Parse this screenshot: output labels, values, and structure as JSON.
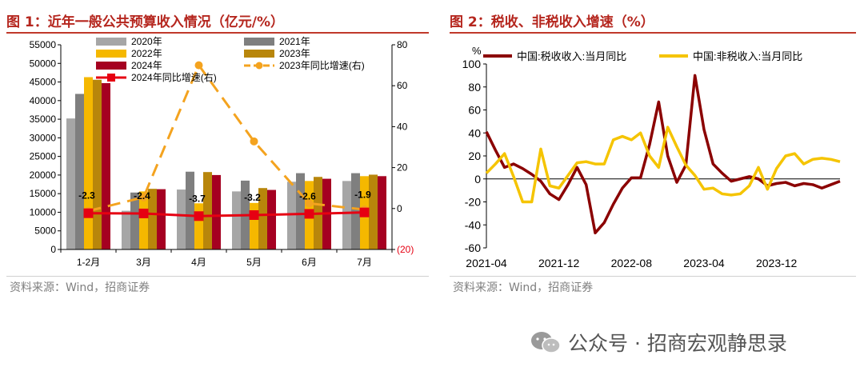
{
  "left": {
    "title": "图 1：近年一般公共预算收入情况（亿元/%）",
    "source": "资料来源：Wind，招商证券"
  },
  "right": {
    "title": "图 2：税收、非税收入增速（%）",
    "source": "资料来源：Wind，招商证券"
  },
  "watermark": "公众号 · 招商宏观静思录",
  "colors": {
    "title_red": "#b5261e",
    "c2020": "#a6a6a6",
    "c2021": "#7f7f7f",
    "c2022": "#f5b800",
    "c2023": "#b8860b",
    "c2024": "#a50021",
    "line2024": "#e60012",
    "line2023": "#f4a31f",
    "tax": "#8b0000",
    "nontax": "#f5c400"
  },
  "chart_data": [
    {
      "type": "bar",
      "categories": [
        "1-2月",
        "3月",
        "4月",
        "5月",
        "6月",
        "7月"
      ],
      "series": [
        {
          "name": "2020年",
          "values": [
            35200,
            10400,
            16100,
            15600,
            18200,
            18400
          ]
        },
        {
          "name": "2021年",
          "values": [
            41800,
            15300,
            20900,
            18500,
            20500,
            20500
          ]
        },
        {
          "name": "2022年",
          "values": [
            46300,
            15600,
            12400,
            12500,
            18400,
            19700
          ]
        },
        {
          "name": "2023年",
          "values": [
            45600,
            16300,
            20800,
            16500,
            19500,
            20100
          ]
        },
        {
          "name": "2024年",
          "values": [
            44700,
            16200,
            20000,
            16000,
            19000,
            19700
          ]
        }
      ],
      "line_series": [
        {
          "name": "2024年同比增速(右)",
          "axis": "right",
          "values": [
            -2.3,
            -2.4,
            -3.7,
            -3.2,
            -2.6,
            -1.9
          ]
        },
        {
          "name": "2023年同比增速(右)",
          "axis": "right",
          "values": [
            -1.2,
            5.5,
            70.0,
            32.8,
            2.5,
            -0.5
          ]
        }
      ],
      "data_labels": [
        "-2.3",
        "-2.4",
        "-3.7",
        "-3.2",
        "-2.6",
        "-1.9"
      ],
      "y_left_ticks": [
        "0",
        "5000",
        "10000",
        "15000",
        "20000",
        "25000",
        "30000",
        "35000",
        "40000",
        "45000",
        "50000",
        "55000"
      ],
      "y_right_ticks": [
        "(20)",
        "0",
        "20",
        "40",
        "60",
        "80"
      ],
      "ylim_left": [
        0,
        55000
      ],
      "ylim_right": [
        -20,
        80
      ],
      "legend_position": "top",
      "grid": false
    },
    {
      "type": "line",
      "ylabel": "%",
      "x_ticks": [
        "2021-04",
        "2021-12",
        "2022-08",
        "2023-04",
        "2023-12"
      ],
      "x": [
        "2021-04",
        "2021-05",
        "2021-06",
        "2021-07",
        "2021-08",
        "2021-09",
        "2021-10",
        "2021-11",
        "2021-12",
        "2022-01",
        "2022-02",
        "2022-03",
        "2022-04",
        "2022-05",
        "2022-06",
        "2022-07",
        "2022-08",
        "2022-09",
        "2022-10",
        "2022-11",
        "2022-12",
        "2023-01",
        "2023-02",
        "2023-03",
        "2023-04",
        "2023-05",
        "2023-06",
        "2023-07",
        "2023-08",
        "2023-09",
        "2023-10",
        "2023-11",
        "2023-12",
        "2024-01",
        "2024-02",
        "2024-03",
        "2024-04",
        "2024-05",
        "2024-06",
        "2024-07"
      ],
      "series": [
        {
          "name": "中国:税收收入:当月同比",
          "values": [
            41,
            25,
            10,
            13,
            9,
            4,
            -2,
            -13,
            -18,
            -5,
            10,
            -5,
            -47,
            -38,
            -22,
            -8,
            1,
            1,
            30,
            67,
            20,
            -3,
            12,
            90,
            43,
            13,
            5,
            -2,
            0,
            2,
            0,
            -6,
            -4,
            -3,
            -6,
            -4,
            -5,
            -8,
            -5,
            -2
          ]
        },
        {
          "name": "中国:非税收入:当月同比",
          "values": [
            5,
            13,
            22,
            2,
            -20,
            -20,
            26,
            -6,
            -8,
            3,
            14,
            15,
            13,
            13,
            34,
            37,
            34,
            40,
            20,
            10,
            45,
            28,
            12,
            3,
            -9,
            -8,
            -13,
            -14,
            -13,
            -6,
            10,
            -9,
            9,
            20,
            22,
            13,
            17,
            18,
            17,
            15
          ]
        }
      ],
      "y_ticks": [
        "-60",
        "-40",
        "-20",
        "0",
        "20",
        "40",
        "60",
        "80",
        "100"
      ],
      "ylim": [
        -60,
        100
      ],
      "legend_position": "top",
      "grid": false
    }
  ]
}
